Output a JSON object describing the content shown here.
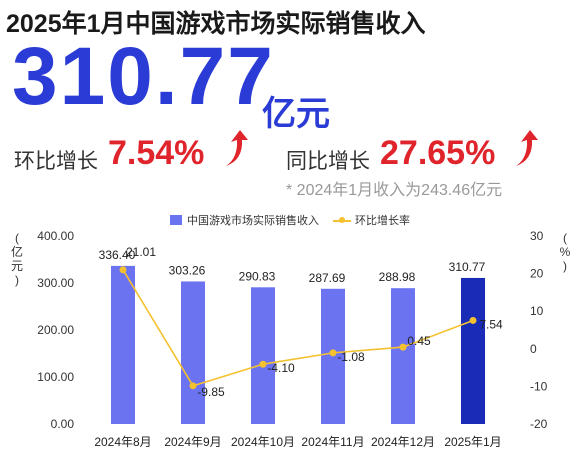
{
  "header": {
    "title": "2025年1月中国游戏市场实际销售收入",
    "big_value": "310.77",
    "big_unit": "亿元"
  },
  "stats": {
    "mom_label": "环比增长",
    "mom_value": "7.54%",
    "yoy_label": "同比增长",
    "yoy_value": "27.65%",
    "note": "* 2024年1月收入为243.46亿元"
  },
  "colors": {
    "accent_blue": "#2b3bd6",
    "bar": "#6b73f0",
    "bar_highlight": "#1a2bb8",
    "line": "#f5c12e",
    "up_red": "#e0242b"
  },
  "chart_data": {
    "type": "bar",
    "categories": [
      "2024年8月",
      "2024年9月",
      "2024年10月",
      "2024年11月",
      "2024年12月",
      "2025年1月"
    ],
    "series": [
      {
        "name": "中国游戏市场实际销售收入",
        "type": "bar",
        "axis": "left",
        "values": [
          336.4,
          303.26,
          290.83,
          287.69,
          288.98,
          310.77
        ],
        "labels": [
          "336.40",
          "303.26",
          "290.83",
          "287.69",
          "288.98",
          "310.77"
        ]
      },
      {
        "name": "环比增长率",
        "type": "line",
        "axis": "right",
        "values": [
          21.01,
          -9.85,
          -4.1,
          -1.08,
          0.45,
          7.54
        ],
        "labels": [
          "21.01",
          "-9.85",
          "-4.10",
          "-1.08",
          "0.45",
          "7.54"
        ]
      }
    ],
    "y_left": {
      "label": "亿元",
      "ylim": [
        0,
        400
      ],
      "ticks": [
        "0.00",
        "100.00",
        "200.00",
        "300.00",
        "400.00"
      ],
      "tick_values": [
        0,
        100,
        200,
        300,
        400
      ]
    },
    "y_right": {
      "label": "%",
      "ylim": [
        -20,
        30
      ],
      "ticks": [
        "-20",
        "-10",
        "0",
        "10",
        "20",
        "30"
      ],
      "tick_values": [
        -20,
        -10,
        0,
        10,
        20,
        30
      ]
    },
    "legend_position": "top-center",
    "grid": false
  }
}
